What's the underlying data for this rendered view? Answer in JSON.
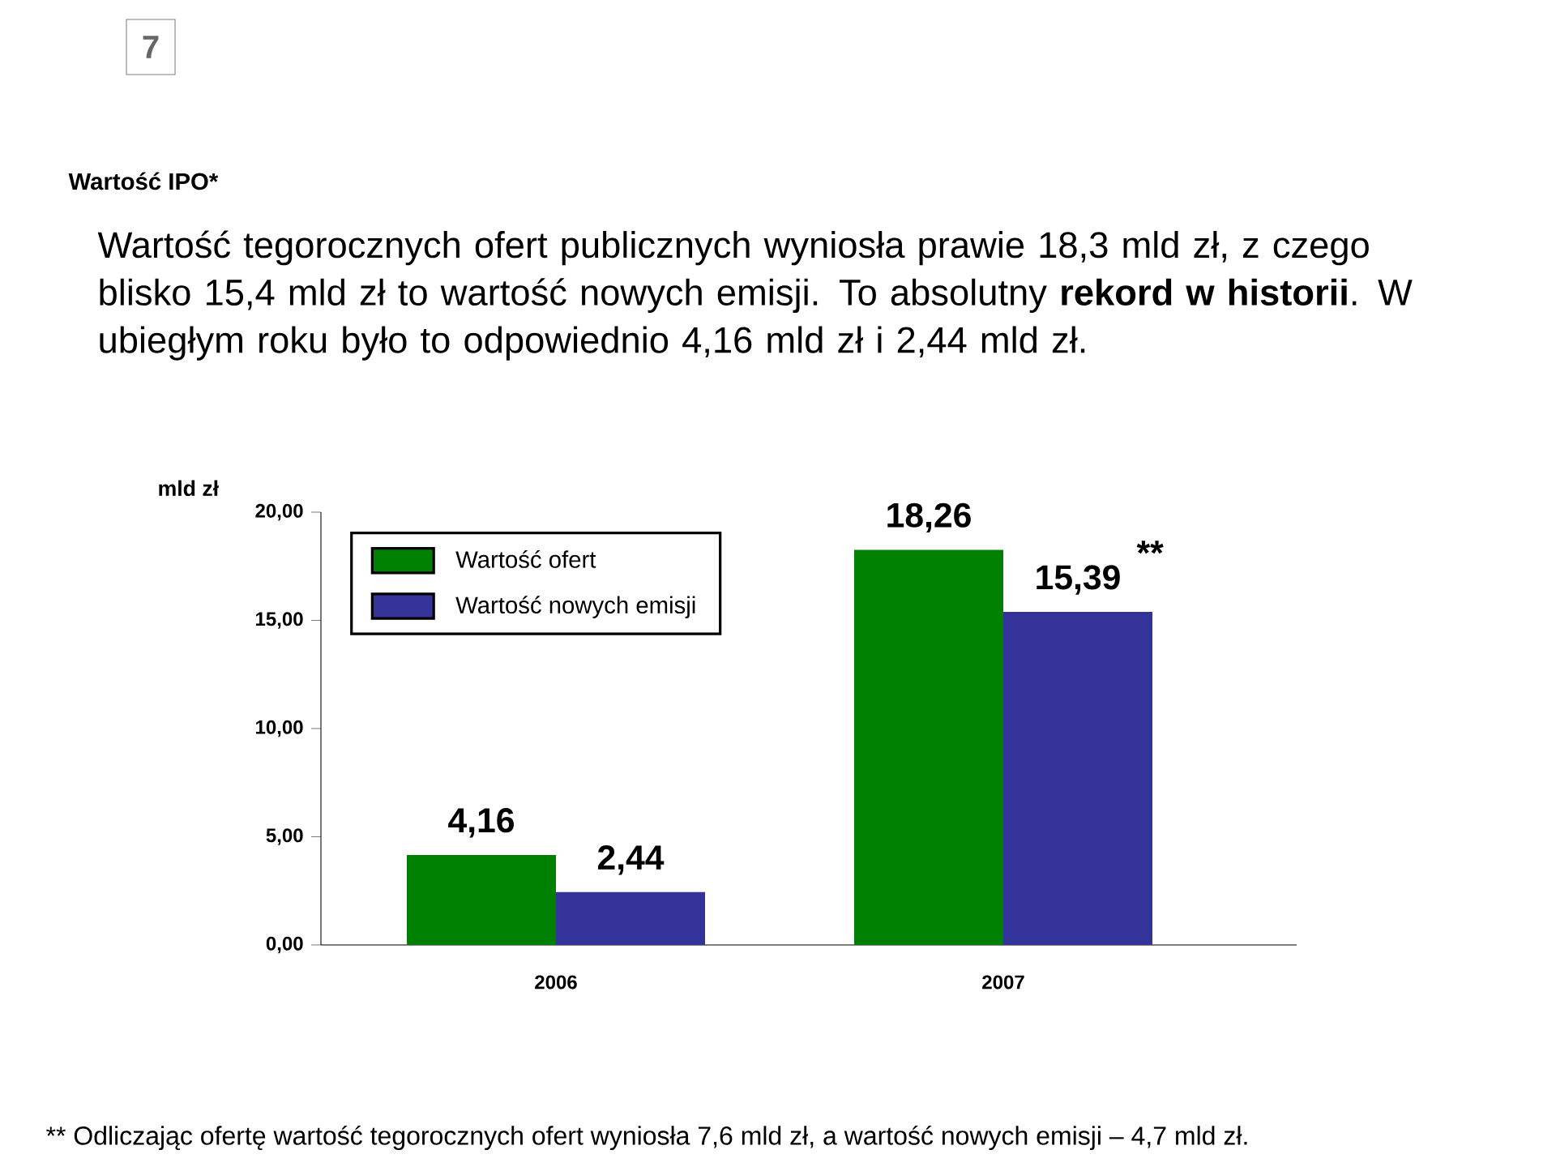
{
  "chart_data": {
    "type": "bar",
    "title": "Wartość IPO*",
    "subtitle": "Wartość tegorocznych ofert publicznych wyniosła prawie 18,3 mld zł, z czego blisko 15,4 mld zł to wartość nowych emisji. To absolutny **rekord w historii**. W ubiegłym roku było to odpowiednio 4,16 mld zł i 2,44 mld zł.",
    "ylabel": "mld zł",
    "categories": [
      "2006",
      "2007"
    ],
    "series": [
      {
        "name": "Wartość ofert",
        "color": "#008000",
        "values": [
          4.16,
          18.26
        ],
        "value_labels": [
          "4,16",
          "18,26"
        ]
      },
      {
        "name": "Wartość nowych emisji",
        "color": "#333399",
        "values": [
          2.44,
          15.39
        ],
        "value_labels": [
          "2,44",
          "15,39"
        ]
      }
    ],
    "ylim": [
      0,
      20
    ],
    "yticks": [
      {
        "value": 0,
        "label": "0,00"
      },
      {
        "value": 5,
        "label": "5,00"
      },
      {
        "value": 10,
        "label": "10,00"
      },
      {
        "value": 15,
        "label": "15,00"
      },
      {
        "value": 20,
        "label": "20,00"
      }
    ],
    "legend": "top left",
    "annotations": [
      "7",
      "**",
      "** Odliczając ofertę wartość tegorocznych ofert wyniosła 7,6 mld zł, a wartość nowych emisji – 4,7 mld zł."
    ]
  }
}
